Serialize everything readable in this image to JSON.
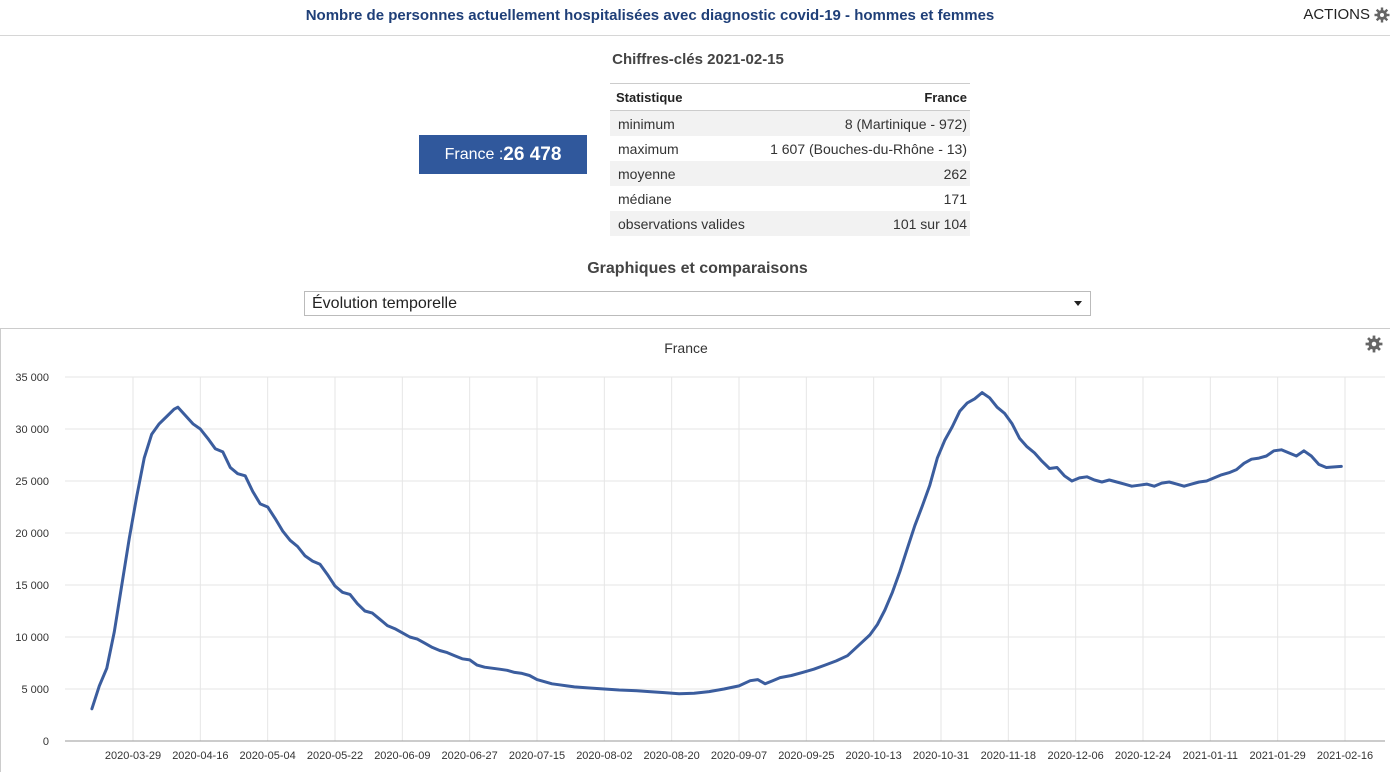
{
  "header": {
    "title": "Nombre de personnes actuellement hospitalisées avec diagnostic covid-19 - hommes et femmes",
    "actions_label": "ACTIONS",
    "actions_icon": "gear-icon"
  },
  "key_figures": {
    "title": "Chiffres-clés 2021-02-15",
    "highlight": {
      "label": "France : ",
      "value": "26 478"
    },
    "table": {
      "headers": [
        "Statistique",
        "France"
      ],
      "rows": [
        [
          "minimum",
          "8 (Martinique - 972)"
        ],
        [
          "maximum",
          "1 607 (Bouches-du-Rhône - 13)"
        ],
        [
          "moyenne",
          "262"
        ],
        [
          "médiane",
          "171"
        ],
        [
          "observations valides",
          "101 sur 104"
        ]
      ]
    }
  },
  "graphs": {
    "title": "Graphiques et comparaisons",
    "select_value": "Évolution temporelle"
  },
  "colors": {
    "line": "#3b5d9e",
    "highlight_bg": "#30589c",
    "title": "#1f3f78"
  },
  "chart_data": {
    "type": "line",
    "title": "France",
    "xlabel": "",
    "ylabel": "",
    "ylim": [
      0,
      35000
    ],
    "yticks": [
      0,
      5000,
      10000,
      15000,
      20000,
      25000,
      30000,
      35000
    ],
    "ytick_labels": [
      "0",
      "5 000",
      "10 000",
      "15 000",
      "20 000",
      "25 000",
      "30 000",
      "35 000"
    ],
    "xticks": [
      "2020-03-29",
      "2020-04-16",
      "2020-05-04",
      "2020-05-22",
      "2020-06-09",
      "2020-06-27",
      "2020-07-15",
      "2020-08-02",
      "2020-08-20",
      "2020-09-07",
      "2020-09-25",
      "2020-10-13",
      "2020-10-31",
      "2020-11-18",
      "2020-12-06",
      "2020-12-24",
      "2021-01-11",
      "2021-01-29",
      "2021-02-16"
    ],
    "grid": true,
    "legend": "none",
    "series": [
      {
        "points": [
          [
            "2020-03-18",
            3100
          ],
          [
            "2020-03-20",
            5300
          ],
          [
            "2020-03-22",
            7000
          ],
          [
            "2020-03-24",
            10500
          ],
          [
            "2020-03-26",
            15000
          ],
          [
            "2020-03-28",
            19500
          ],
          [
            "2020-03-30",
            23500
          ],
          [
            "2020-04-01",
            27200
          ],
          [
            "2020-04-03",
            29500
          ],
          [
            "2020-04-05",
            30500
          ],
          [
            "2020-04-07",
            31200
          ],
          [
            "2020-04-09",
            31900
          ],
          [
            "2020-04-10",
            32100
          ],
          [
            "2020-04-12",
            31300
          ],
          [
            "2020-04-14",
            30500
          ],
          [
            "2020-04-16",
            30000
          ],
          [
            "2020-04-18",
            29100
          ],
          [
            "2020-04-20",
            28100
          ],
          [
            "2020-04-22",
            27800
          ],
          [
            "2020-04-24",
            26300
          ],
          [
            "2020-04-26",
            25700
          ],
          [
            "2020-04-28",
            25500
          ],
          [
            "2020-04-30",
            24000
          ],
          [
            "2020-05-02",
            22800
          ],
          [
            "2020-05-04",
            22500
          ],
          [
            "2020-05-06",
            21400
          ],
          [
            "2020-05-08",
            20200
          ],
          [
            "2020-05-10",
            19300
          ],
          [
            "2020-05-12",
            18700
          ],
          [
            "2020-05-14",
            17800
          ],
          [
            "2020-05-16",
            17300
          ],
          [
            "2020-05-18",
            17000
          ],
          [
            "2020-05-20",
            16000
          ],
          [
            "2020-05-22",
            14900
          ],
          [
            "2020-05-24",
            14300
          ],
          [
            "2020-05-26",
            14100
          ],
          [
            "2020-05-28",
            13200
          ],
          [
            "2020-05-30",
            12500
          ],
          [
            "2020-06-01",
            12300
          ],
          [
            "2020-06-03",
            11700
          ],
          [
            "2020-06-05",
            11100
          ],
          [
            "2020-06-07",
            10800
          ],
          [
            "2020-06-09",
            10400
          ],
          [
            "2020-06-11",
            10000
          ],
          [
            "2020-06-13",
            9800
          ],
          [
            "2020-06-15",
            9400
          ],
          [
            "2020-06-17",
            9000
          ],
          [
            "2020-06-19",
            8700
          ],
          [
            "2020-06-21",
            8500
          ],
          [
            "2020-06-23",
            8200
          ],
          [
            "2020-06-25",
            7900
          ],
          [
            "2020-06-27",
            7800
          ],
          [
            "2020-06-29",
            7300
          ],
          [
            "2020-07-01",
            7100
          ],
          [
            "2020-07-03",
            7000
          ],
          [
            "2020-07-05",
            6900
          ],
          [
            "2020-07-07",
            6800
          ],
          [
            "2020-07-09",
            6600
          ],
          [
            "2020-07-11",
            6500
          ],
          [
            "2020-07-13",
            6300
          ],
          [
            "2020-07-15",
            5900
          ],
          [
            "2020-07-17",
            5700
          ],
          [
            "2020-07-19",
            5500
          ],
          [
            "2020-07-21",
            5400
          ],
          [
            "2020-07-23",
            5300
          ],
          [
            "2020-07-25",
            5200
          ],
          [
            "2020-07-29",
            5100
          ],
          [
            "2020-08-02",
            5000
          ],
          [
            "2020-08-06",
            4900
          ],
          [
            "2020-08-10",
            4850
          ],
          [
            "2020-08-14",
            4750
          ],
          [
            "2020-08-18",
            4650
          ],
          [
            "2020-08-22",
            4550
          ],
          [
            "2020-08-26",
            4600
          ],
          [
            "2020-08-30",
            4750
          ],
          [
            "2020-09-03",
            5000
          ],
          [
            "2020-09-07",
            5300
          ],
          [
            "2020-09-10",
            5800
          ],
          [
            "2020-09-12",
            5900
          ],
          [
            "2020-09-14",
            5500
          ],
          [
            "2020-09-16",
            5800
          ],
          [
            "2020-09-18",
            6100
          ],
          [
            "2020-09-21",
            6300
          ],
          [
            "2020-09-24",
            6600
          ],
          [
            "2020-09-27",
            6900
          ],
          [
            "2020-09-30",
            7300
          ],
          [
            "2020-10-03",
            7700
          ],
          [
            "2020-10-06",
            8200
          ],
          [
            "2020-10-09",
            9200
          ],
          [
            "2020-10-12",
            10200
          ],
          [
            "2020-10-14",
            11200
          ],
          [
            "2020-10-16",
            12600
          ],
          [
            "2020-10-18",
            14300
          ],
          [
            "2020-10-20",
            16300
          ],
          [
            "2020-10-22",
            18500
          ],
          [
            "2020-10-24",
            20700
          ],
          [
            "2020-10-26",
            22600
          ],
          [
            "2020-10-28",
            24600
          ],
          [
            "2020-10-30",
            27200
          ],
          [
            "2020-11-01",
            28900
          ],
          [
            "2020-11-03",
            30200
          ],
          [
            "2020-11-05",
            31700
          ],
          [
            "2020-11-07",
            32500
          ],
          [
            "2020-11-09",
            32900
          ],
          [
            "2020-11-11",
            33500
          ],
          [
            "2020-11-13",
            33000
          ],
          [
            "2020-11-15",
            32100
          ],
          [
            "2020-11-17",
            31500
          ],
          [
            "2020-11-19",
            30500
          ],
          [
            "2020-11-21",
            29100
          ],
          [
            "2020-11-23",
            28300
          ],
          [
            "2020-11-25",
            27700
          ],
          [
            "2020-11-27",
            26900
          ],
          [
            "2020-11-29",
            26200
          ],
          [
            "2020-12-01",
            26300
          ],
          [
            "2020-12-03",
            25500
          ],
          [
            "2020-12-05",
            25000
          ],
          [
            "2020-12-07",
            25300
          ],
          [
            "2020-12-09",
            25400
          ],
          [
            "2020-12-11",
            25100
          ],
          [
            "2020-12-13",
            24900
          ],
          [
            "2020-12-15",
            25100
          ],
          [
            "2020-12-17",
            24900
          ],
          [
            "2020-12-19",
            24700
          ],
          [
            "2020-12-21",
            24500
          ],
          [
            "2020-12-23",
            24600
          ],
          [
            "2020-12-25",
            24700
          ],
          [
            "2020-12-27",
            24500
          ],
          [
            "2020-12-29",
            24800
          ],
          [
            "2020-12-31",
            24900
          ],
          [
            "2021-01-02",
            24700
          ],
          [
            "2021-01-04",
            24500
          ],
          [
            "2021-01-06",
            24700
          ],
          [
            "2021-01-08",
            24900
          ],
          [
            "2021-01-10",
            25000
          ],
          [
            "2021-01-12",
            25300
          ],
          [
            "2021-01-14",
            25600
          ],
          [
            "2021-01-16",
            25800
          ],
          [
            "2021-01-18",
            26100
          ],
          [
            "2021-01-20",
            26700
          ],
          [
            "2021-01-22",
            27100
          ],
          [
            "2021-01-24",
            27200
          ],
          [
            "2021-01-26",
            27400
          ],
          [
            "2021-01-28",
            27900
          ],
          [
            "2021-01-30",
            28000
          ],
          [
            "2021-02-01",
            27700
          ],
          [
            "2021-02-03",
            27400
          ],
          [
            "2021-02-05",
            27900
          ],
          [
            "2021-02-07",
            27400
          ],
          [
            "2021-02-09",
            26600
          ],
          [
            "2021-02-11",
            26300
          ],
          [
            "2021-02-15",
            26400
          ]
        ]
      }
    ]
  }
}
